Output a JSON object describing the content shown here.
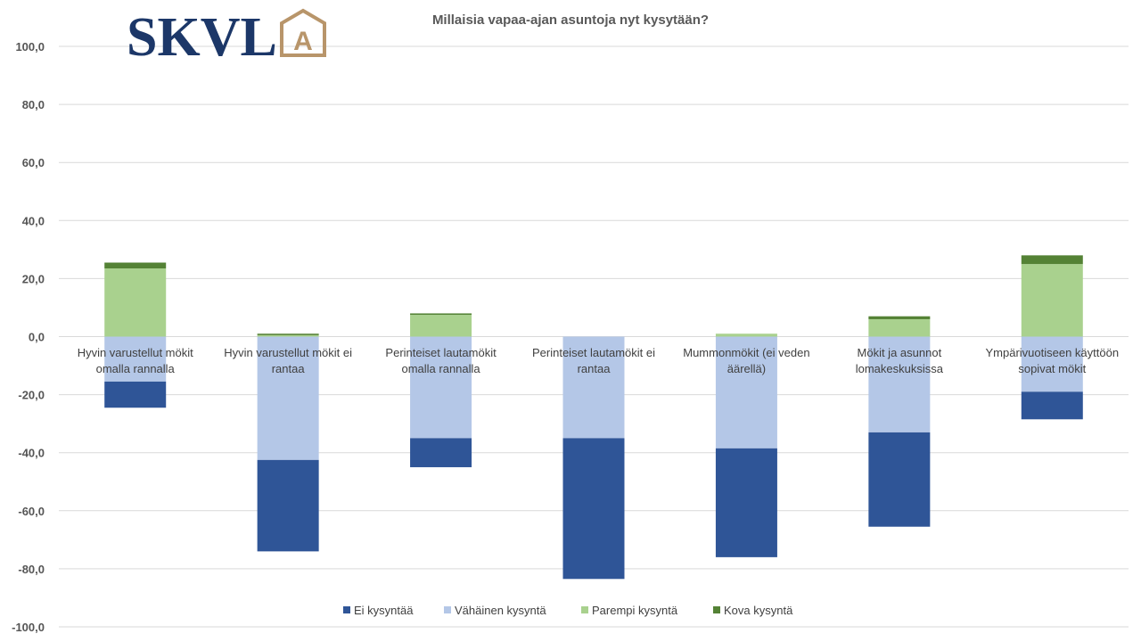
{
  "chart_data": {
    "type": "bar",
    "stacked": true,
    "title": "Millaisia vapaa-ajan  asuntoja nyt kysytään?",
    "xlabel": "",
    "ylabel": "",
    "ylim": [
      -100,
      100
    ],
    "yticks": [
      -100,
      -80,
      -60,
      -40,
      -20,
      0,
      20,
      40,
      60,
      80,
      100
    ],
    "grid": true,
    "legend_position": "bottom",
    "categories": [
      "Hyvin varustellut mökit omalla rannalla",
      "Hyvin varustellut mökit ei rantaa",
      "Perinteiset lautamökit omalla rannalla",
      "Perinteiset lautamökit ei rantaa",
      "Mummonmökit (ei veden äärellä)",
      "Mökit ja asunnot lomakeskuksissa",
      "Ympärivuotiseen käyttöön sopivat mökit"
    ],
    "category_lines": [
      [
        "Hyvin varustellut mökit",
        "omalla rannalla"
      ],
      [
        "Hyvin varustellut mökit ei",
        "rantaa"
      ],
      [
        "Perinteiset lautamökit",
        "omalla rannalla"
      ],
      [
        "Perinteiset lautamökit ei",
        "rantaa"
      ],
      [
        "Mummonmökit (ei veden",
        "äärellä)"
      ],
      [
        "Mökit ja asunnot",
        "lomakeskuksissa"
      ],
      [
        "Ympärivuotiseen käyttöön",
        "sopivat mökit"
      ]
    ],
    "series": [
      {
        "name": "Ei kysyntää",
        "color": "#2f5597",
        "values": [
          -9.0,
          -31.5,
          -10.0,
          -48.5,
          -37.5,
          -32.5,
          -9.5
        ]
      },
      {
        "name": "Vähäinen kysyntä",
        "color": "#b4c7e7",
        "values": [
          -15.5,
          -42.5,
          -35.0,
          -35.0,
          -38.5,
          -33.0,
          -19.0
        ]
      },
      {
        "name": "Parempi kysyntä",
        "color": "#a9d18e",
        "values": [
          23.5,
          0.5,
          7.5,
          0.0,
          1.0,
          6.0,
          25.0
        ]
      },
      {
        "name": "Kova kysyntä",
        "color": "#548235",
        "values": [
          2.0,
          0.5,
          0.5,
          0.0,
          0.0,
          1.0,
          3.0
        ]
      }
    ]
  },
  "logo": {
    "text": "SKVL",
    "badge_letter": "A",
    "primary_color": "#1c3768",
    "accent_color": "#b8956a"
  }
}
